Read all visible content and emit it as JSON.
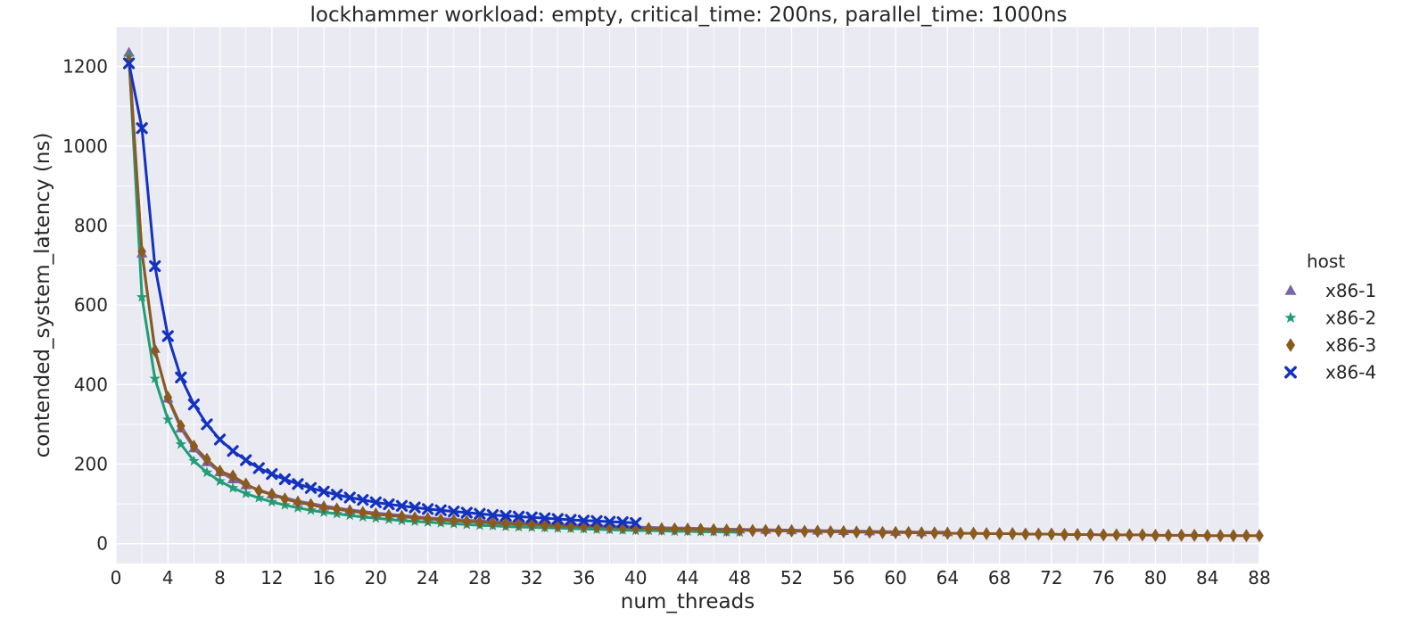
{
  "chart_data": {
    "type": "line",
    "title": "lockhammer workload: empty, critical_time: 200ns, parallel_time: 1000ns",
    "xlabel": "num_threads",
    "ylabel": "contended_system_latency (ns)",
    "xlim": [
      0,
      88
    ],
    "ylim": [
      -50,
      1300
    ],
    "xticks": [
      0,
      4,
      8,
      12,
      16,
      20,
      24,
      28,
      32,
      36,
      40,
      44,
      48,
      52,
      56,
      60,
      64,
      68,
      72,
      76,
      80,
      84,
      88
    ],
    "yticks": [
      0,
      200,
      400,
      600,
      800,
      1000,
      1200
    ],
    "grid": true,
    "legend": {
      "title": "host",
      "position": "right"
    },
    "series": [
      {
        "name": "x86-1",
        "color": "#7b64a8",
        "marker": "triangle",
        "x": [
          1,
          2,
          3,
          4,
          5,
          6,
          7,
          8,
          9,
          10,
          12,
          14,
          16,
          18,
          20,
          22,
          24,
          26,
          28,
          30,
          32,
          34,
          36,
          38,
          40,
          42,
          44,
          46,
          48,
          50,
          52,
          54,
          56,
          58,
          60,
          62,
          64
        ],
        "y": [
          1235,
          730,
          490,
          365,
          290,
          240,
          205,
          180,
          162,
          147,
          124,
          107,
          95,
          85,
          77,
          71,
          65,
          61,
          57,
          54,
          51,
          48,
          46,
          44,
          42,
          40,
          39,
          37,
          36,
          35,
          34,
          33,
          32,
          31,
          30,
          29,
          29
        ]
      },
      {
        "name": "x86-2",
        "color": "#1f9e77",
        "marker": "star",
        "x": [
          1,
          2,
          3,
          4,
          5,
          6,
          7,
          8,
          9,
          10,
          11,
          12,
          13,
          14,
          15,
          16,
          17,
          18,
          19,
          20,
          21,
          22,
          23,
          24,
          25,
          26,
          27,
          28,
          29,
          30,
          31,
          32,
          33,
          34,
          35,
          36,
          37,
          38,
          39,
          40,
          41,
          42,
          43,
          44,
          45,
          46,
          47,
          48
        ],
        "y": [
          1225,
          620,
          415,
          312,
          250,
          208,
          179,
          157,
          140,
          126,
          115,
          105,
          97,
          90,
          84,
          79,
          75,
          71,
          67,
          64,
          61,
          58,
          56,
          54,
          52,
          50,
          48,
          46,
          45,
          43,
          42,
          41,
          40,
          39,
          38,
          37,
          36,
          35,
          34,
          33,
          33,
          32,
          31,
          31,
          30,
          30,
          29,
          29
        ]
      },
      {
        "name": "x86-3",
        "color": "#8b5a1e",
        "marker": "diamond",
        "x": [
          1,
          2,
          3,
          4,
          5,
          6,
          7,
          8,
          9,
          10,
          11,
          12,
          13,
          14,
          15,
          16,
          17,
          18,
          19,
          20,
          21,
          22,
          23,
          24,
          25,
          26,
          27,
          28,
          29,
          30,
          31,
          32,
          33,
          34,
          35,
          36,
          37,
          38,
          39,
          40,
          41,
          42,
          43,
          44,
          45,
          46,
          47,
          48,
          49,
          50,
          51,
          52,
          53,
          54,
          55,
          56,
          57,
          58,
          59,
          60,
          61,
          62,
          63,
          64,
          65,
          66,
          67,
          68,
          69,
          70,
          71,
          72,
          73,
          74,
          75,
          76,
          77,
          78,
          79,
          80,
          81,
          82,
          83,
          84,
          85,
          86,
          87,
          88
        ],
        "y": [
          1215,
          735,
          485,
          368,
          296,
          245,
          212,
          182,
          170,
          150,
          133,
          124,
          112,
          104,
          98,
          91,
          87,
          82,
          78,
          74,
          71,
          68,
          65,
          63,
          60,
          58,
          56,
          54,
          52,
          50,
          49,
          48,
          46,
          45,
          44,
          43,
          42,
          41,
          40,
          39,
          38,
          37,
          37,
          36,
          36,
          35,
          34,
          34,
          33,
          33,
          32,
          32,
          31,
          31,
          30,
          30,
          29,
          29,
          28,
          28,
          28,
          27,
          27,
          26,
          26,
          26,
          25,
          25,
          25,
          24,
          24,
          24,
          23,
          23,
          23,
          22,
          22,
          22,
          22,
          21,
          21,
          21,
          21,
          20,
          20,
          20,
          20,
          20
        ]
      },
      {
        "name": "x86-4",
        "color": "#1432c0",
        "marker": "x",
        "x": [
          1,
          2,
          3,
          4,
          5,
          6,
          7,
          8,
          9,
          10,
          11,
          12,
          13,
          14,
          15,
          16,
          17,
          18,
          19,
          20,
          21,
          22,
          23,
          24,
          25,
          26,
          27,
          28,
          29,
          30,
          31,
          32,
          33,
          34,
          35,
          36,
          37,
          38,
          39,
          40
        ],
        "y": [
          1208,
          1045,
          698,
          522,
          418,
          350,
          300,
          262,
          233,
          210,
          190,
          175,
          162,
          150,
          140,
          131,
          123,
          116,
          110,
          104,
          99,
          95,
          91,
          87,
          84,
          81,
          78,
          75,
          72,
          70,
          68,
          66,
          64,
          62,
          60,
          58,
          57,
          55,
          54,
          52
        ]
      }
    ]
  }
}
